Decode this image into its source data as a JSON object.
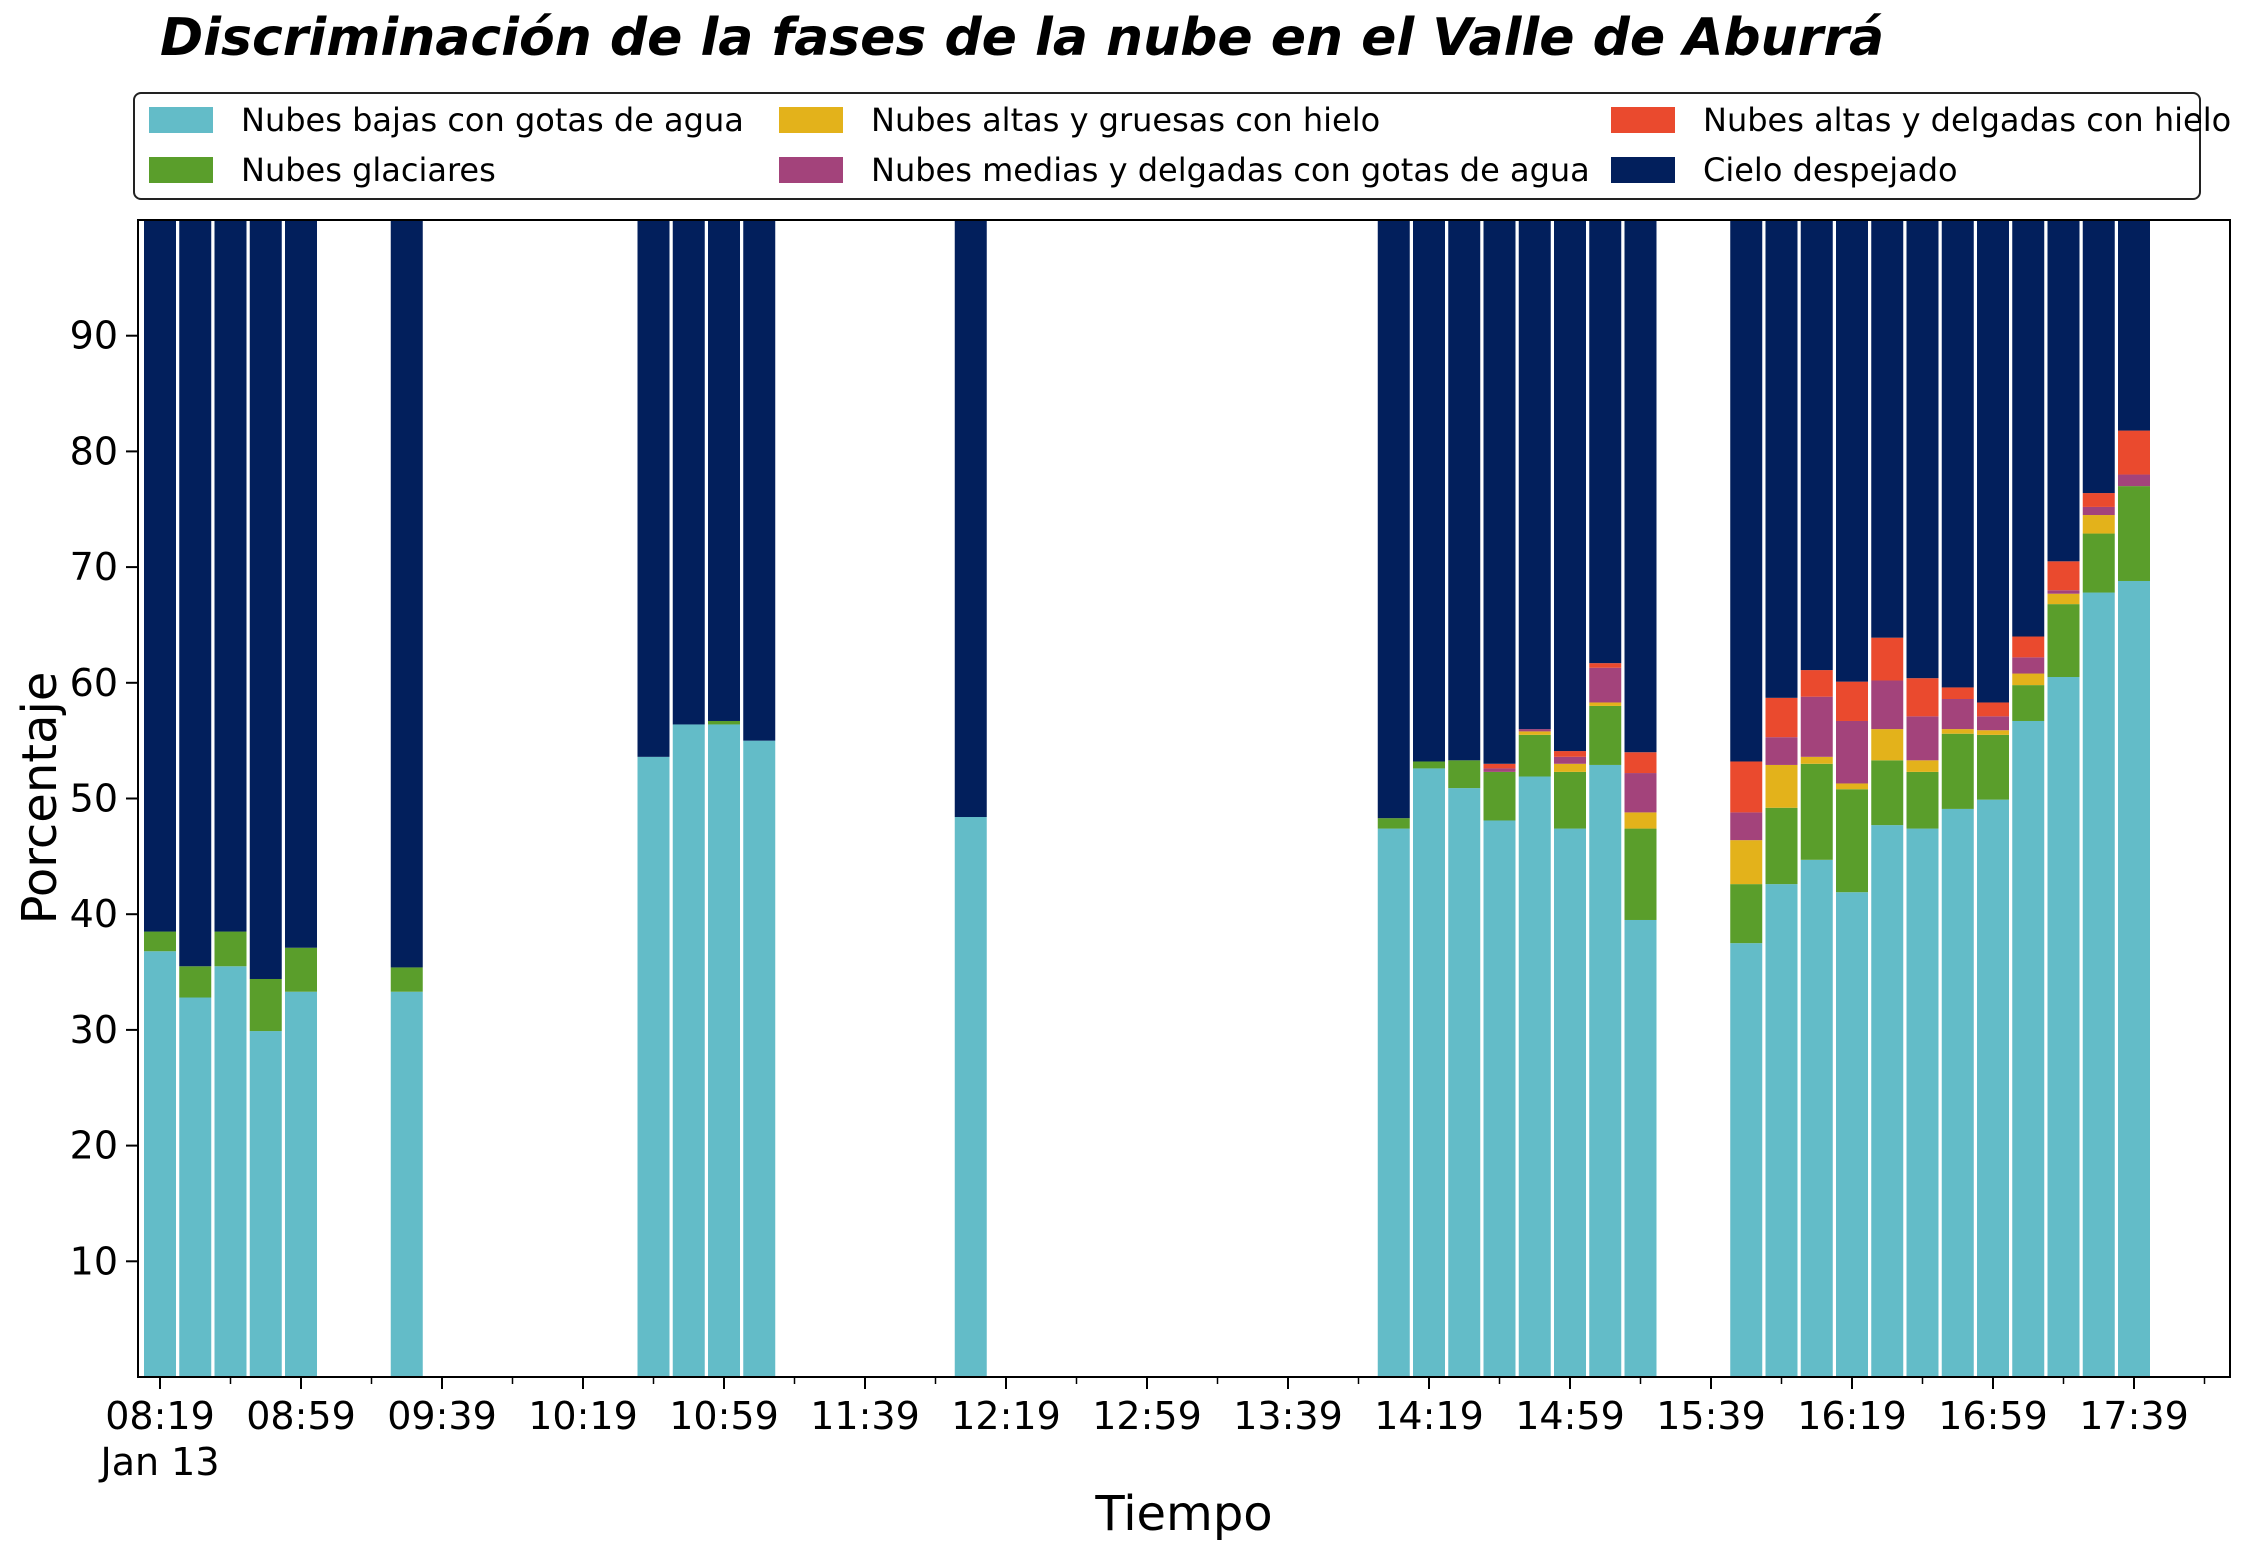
{
  "chart_data": {
    "type": "bar",
    "stacked": true,
    "title": "Discriminación de la fases de la nube en el Valle de Aburrá",
    "xlabel": "Tiempo",
    "ylabel": "Porcentaje",
    "ylim": [
      0,
      100
    ],
    "yticks": [
      10,
      20,
      30,
      40,
      50,
      60,
      70,
      80,
      90
    ],
    "xlim": [
      0,
      29
    ],
    "xticks": [
      {
        "pos": 0,
        "label": "08:19"
      },
      {
        "pos": 2,
        "label": "08:59"
      },
      {
        "pos": 4,
        "label": "09:39"
      },
      {
        "pos": 6,
        "label": "10:19"
      },
      {
        "pos": 8,
        "label": "10:59"
      },
      {
        "pos": 10,
        "label": "11:39"
      },
      {
        "pos": 12,
        "label": "12:19"
      },
      {
        "pos": 14,
        "label": "12:59"
      },
      {
        "pos": 16,
        "label": "13:39"
      },
      {
        "pos": 18,
        "label": "14:19"
      },
      {
        "pos": 20,
        "label": "14:59"
      },
      {
        "pos": 22,
        "label": "15:39"
      },
      {
        "pos": 24,
        "label": "16:19"
      },
      {
        "pos": 26,
        "label": "16:59"
      },
      {
        "pos": 28,
        "label": "17:39"
      }
    ],
    "date_label": "Jan 13",
    "grid": false,
    "legend_position": "top",
    "categories": [
      "08:19",
      "08:29",
      "08:39",
      "08:49",
      "08:59",
      "09:29",
      "10:49",
      "10:59",
      "11:09",
      "11:19",
      "12:19",
      "14:19",
      "14:29",
      "14:39",
      "14:49",
      "14:59",
      "15:09",
      "15:19",
      "15:29",
      "16:09",
      "16:19",
      "16:29",
      "16:39",
      "16:49",
      "16:59",
      "17:09",
      "17:19",
      "17:29",
      "17:39",
      "17:49",
      "17:59",
      "18:09",
      "18:19"
    ],
    "x": [
      0,
      0.5,
      1,
      1.5,
      2,
      3.5,
      7,
      7.5,
      8,
      8.5,
      11.5,
      17.5,
      18,
      18.5,
      19,
      19.5,
      20,
      20.5,
      21,
      22.5,
      23,
      23.5,
      24,
      24.5,
      25,
      25.5,
      26,
      26.5,
      27,
      27.5,
      28,
      28.5,
      29
    ],
    "series": [
      {
        "name": "Nubes bajas con gotas de agua",
        "color": "#63bcc8",
        "values": [
          36.8,
          32.8,
          35.5,
          29.9,
          33.3,
          33.3,
          53.6,
          56.4,
          56.4,
          55.0,
          48.4,
          47.4,
          52.6,
          50.9,
          48.1,
          51.9,
          47.4,
          52.9,
          39.5,
          37.5,
          42.6,
          44.7,
          41.9,
          47.7,
          47.4,
          49.1,
          49.9,
          56.7,
          60.5,
          67.8,
          68.8,
          0,
          0
        ]
      },
      {
        "name": "Nubes glaciares",
        "color": "#5a9e2b",
        "values": [
          1.7,
          2.7,
          3.0,
          4.5,
          3.8,
          2.1,
          0,
          0,
          0.3,
          0,
          0,
          0.9,
          0.6,
          2.4,
          4.2,
          3.6,
          4.9,
          5.1,
          7.9,
          5.1,
          6.6,
          8.3,
          8.9,
          5.6,
          4.9,
          6.5,
          5.6,
          3.1,
          6.3,
          5.1,
          8.2,
          0,
          0
        ]
      },
      {
        "name": "Nubes altas y gruesas con hielo",
        "color": "#e3b21b",
        "values": [
          0,
          0,
          0,
          0,
          0,
          0,
          0,
          0,
          0,
          0,
          0,
          0,
          0,
          0,
          0,
          0.3,
          0.7,
          0.3,
          1.4,
          3.8,
          3.7,
          0.6,
          0.5,
          2.7,
          1.0,
          0.4,
          0.4,
          1.0,
          0.9,
          1.6,
          0,
          0,
          0
        ]
      },
      {
        "name": "Nubes medias y delgadas con gotas de agua",
        "color": "#a3437b",
        "values": [
          0,
          0,
          0,
          0,
          0,
          0,
          0,
          0,
          0,
          0,
          0,
          0,
          0,
          0,
          0.3,
          0.2,
          0.6,
          3.0,
          3.4,
          2.4,
          2.4,
          5.2,
          5.4,
          4.2,
          3.8,
          2.6,
          1.2,
          1.4,
          0.3,
          0.7,
          1.0,
          0,
          0
        ]
      },
      {
        "name": "Nubes altas y delgadas con hielo",
        "color": "#ea4a2e",
        "values": [
          0,
          0,
          0,
          0,
          0,
          0,
          0,
          0,
          0,
          0,
          0,
          0,
          0,
          0,
          0.4,
          0,
          0.5,
          0.4,
          1.8,
          4.4,
          3.4,
          2.3,
          3.4,
          3.7,
          3.3,
          1.0,
          1.2,
          1.8,
          2.5,
          1.2,
          3.8,
          0,
          0
        ]
      },
      {
        "name": "Cielo despejado",
        "color": "#021f5c",
        "values": [
          61.5,
          64.5,
          61.5,
          65.6,
          62.9,
          64.6,
          46.4,
          43.6,
          43.3,
          45.0,
          51.6,
          51.7,
          46.8,
          46.7,
          47.0,
          44.0,
          45.9,
          38.3,
          46.0,
          46.8,
          41.3,
          38.9,
          39.9,
          36.1,
          39.6,
          40.4,
          41.7,
          36.0,
          29.5,
          23.6,
          18.2,
          0,
          0
        ]
      }
    ]
  }
}
